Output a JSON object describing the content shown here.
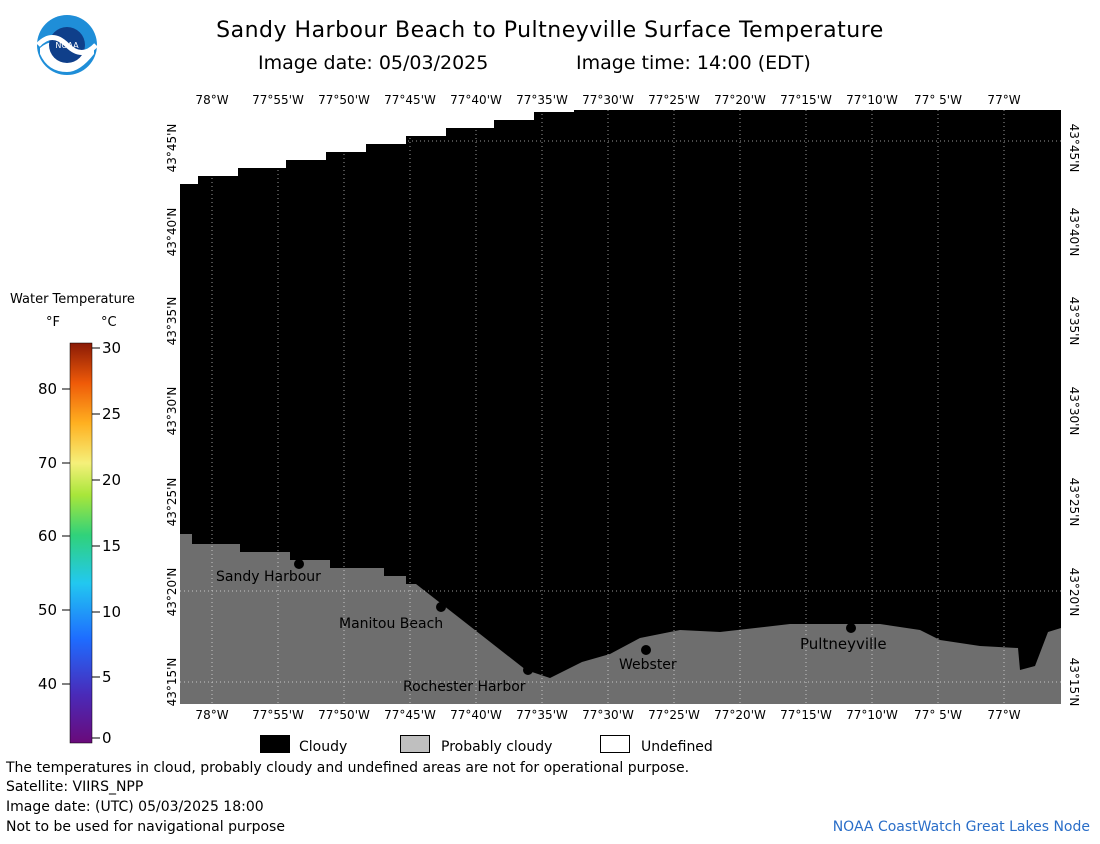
{
  "header": {
    "title": "Sandy Harbour Beach to Pultneyville Surface Temperature",
    "image_date": "Image date: 05/03/2025",
    "image_time": "Image time: 14:00 (EDT)"
  },
  "logo": {
    "text": "NOAA"
  },
  "map": {
    "lon_labels": [
      "78°W",
      "77°55'W",
      "77°50'W",
      "77°45'W",
      "77°40'W",
      "77°35'W",
      "77°30'W",
      "77°25'W",
      "77°20'W",
      "77°15'W",
      "77°10'W",
      "77° 5'W",
      "77°W"
    ],
    "lat_labels": [
      "43°45'N",
      "43°40'N",
      "43°35'N",
      "43°30'N",
      "43°25'N",
      "43°20'N",
      "43°15'N"
    ],
    "places": [
      {
        "name": "Sandy Harbour"
      },
      {
        "name": "Manitou Beach"
      },
      {
        "name": "Rochester Harbor"
      },
      {
        "name": "Webster"
      },
      {
        "name": "Pultneyville"
      }
    ],
    "colors": {
      "cloudy": "#000000",
      "probably_cloudy": "#6e6e6e",
      "undefined": "#ffffff"
    }
  },
  "colorbar": {
    "title": "Water Temperature",
    "unit_f": "°F",
    "unit_c": "°C",
    "f_ticks": [
      "80",
      "70",
      "60",
      "50",
      "40"
    ],
    "c_ticks": [
      "30",
      "25",
      "20",
      "15",
      "10",
      "5",
      "0"
    ]
  },
  "legend": {
    "cloudy": "Cloudy",
    "probably_cloudy": "Probably cloudy",
    "undefined": "Undefined"
  },
  "footer": {
    "note": "The temperatures in cloud, probably cloudy and undefined areas are not for operational purpose.",
    "satellite": "Satellite: VIIRS_NPP",
    "utc_date": "Image date: (UTC) 05/03/2025  18:00",
    "nav": "Not to be used for navigational purpose",
    "credit": "NOAA CoastWatch Great Lakes Node"
  }
}
